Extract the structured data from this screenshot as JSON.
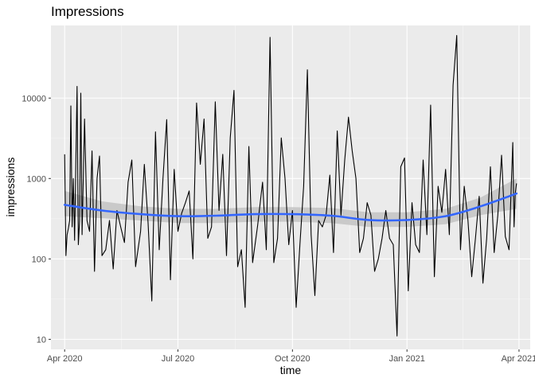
{
  "chart_data": {
    "type": "line",
    "title": "Impressions",
    "xlabel": "time",
    "ylabel": "impressions",
    "y_scale": "log10",
    "ylim": [
      7.5,
      80000
    ],
    "xlim": [
      "2020-03-21",
      "2021-04-10"
    ],
    "x_ticks": [
      {
        "date": "2020-04-01",
        "label": "Apr 2020"
      },
      {
        "date": "2020-07-01",
        "label": "Jul 2020"
      },
      {
        "date": "2020-10-01",
        "label": "Oct 2020"
      },
      {
        "date": "2021-01-01",
        "label": "Jan 2021"
      },
      {
        "date": "2021-04-01",
        "label": "Apr 2021"
      }
    ],
    "y_ticks": [
      {
        "value": 10,
        "label": "10"
      },
      {
        "value": 100,
        "label": "100"
      },
      {
        "value": 1000,
        "label": "1000"
      },
      {
        "value": 10000,
        "label": "10000"
      }
    ],
    "grid": true,
    "panel_background": "#ebebeb",
    "colors": {
      "raw_series": "#000000",
      "smooth": "#3366ff",
      "confidence_band": "#bdbdbd"
    },
    "series": [
      {
        "style": "line",
        "x": [
          "2020-04-01",
          "2020-04-02",
          "2020-04-03",
          "2020-04-04",
          "2020-04-05",
          "2020-04-06",
          "2020-04-07",
          "2020-04-08",
          "2020-04-09",
          "2020-04-10",
          "2020-04-11",
          "2020-04-12",
          "2020-04-13",
          "2020-04-14",
          "2020-04-15",
          "2020-04-17",
          "2020-04-19",
          "2020-04-21",
          "2020-04-23",
          "2020-04-25",
          "2020-04-27",
          "2020-04-29",
          "2020-05-01",
          "2020-05-04",
          "2020-05-07",
          "2020-05-10",
          "2020-05-13",
          "2020-05-16",
          "2020-05-19",
          "2020-05-22",
          "2020-05-25",
          "2020-05-28",
          "2020-06-01",
          "2020-06-04",
          "2020-06-07",
          "2020-06-10",
          "2020-06-13",
          "2020-06-16",
          "2020-06-19",
          "2020-06-22",
          "2020-06-25",
          "2020-06-28",
          "2020-07-01",
          "2020-07-04",
          "2020-07-07",
          "2020-07-10",
          "2020-07-13",
          "2020-07-16",
          "2020-07-19",
          "2020-07-22",
          "2020-07-25",
          "2020-07-28",
          "2020-07-31",
          "2020-08-03",
          "2020-08-06",
          "2020-08-09",
          "2020-08-12",
          "2020-08-15",
          "2020-08-18",
          "2020-08-21",
          "2020-08-24",
          "2020-08-27",
          "2020-08-30",
          "2020-09-03",
          "2020-09-07",
          "2020-09-10",
          "2020-09-13",
          "2020-09-16",
          "2020-09-19",
          "2020-09-22",
          "2020-09-25",
          "2020-09-28",
          "2020-10-01",
          "2020-10-04",
          "2020-10-07",
          "2020-10-10",
          "2020-10-13",
          "2020-10-16",
          "2020-10-19",
          "2020-10-22",
          "2020-10-25",
          "2020-10-28",
          "2020-10-31",
          "2020-11-03",
          "2020-11-06",
          "2020-11-09",
          "2020-11-12",
          "2020-11-15",
          "2020-11-18",
          "2020-11-21",
          "2020-11-24",
          "2020-11-27",
          "2020-11-30",
          "2020-12-03",
          "2020-12-06",
          "2020-12-09",
          "2020-12-12",
          "2020-12-15",
          "2020-12-18",
          "2020-12-21",
          "2020-12-24",
          "2020-12-27",
          "2020-12-30",
          "2021-01-02",
          "2021-01-05",
          "2021-01-08",
          "2021-01-11",
          "2021-01-14",
          "2021-01-17",
          "2021-01-20",
          "2021-01-23",
          "2021-01-26",
          "2021-01-29",
          "2021-02-01",
          "2021-02-04",
          "2021-02-07",
          "2021-02-10",
          "2021-02-13",
          "2021-02-16",
          "2021-02-19",
          "2021-02-22",
          "2021-02-25",
          "2021-02-28",
          "2021-03-03",
          "2021-03-06",
          "2021-03-09",
          "2021-03-12",
          "2021-03-15",
          "2021-03-18",
          "2021-03-21",
          "2021-03-24",
          "2021-03-27",
          "2021-03-28",
          "2021-03-29",
          "2021-03-30"
        ],
        "y": [
          2000,
          110,
          200,
          240,
          300,
          8000,
          250,
          1000,
          170,
          1600,
          14000,
          150,
          300,
          11500,
          200,
          5500,
          300,
          220,
          2200,
          70,
          1000,
          1900,
          110,
          130,
          300,
          75,
          400,
          250,
          160,
          900,
          1700,
          80,
          220,
          1500,
          280,
          30,
          3800,
          130,
          1000,
          5400,
          55,
          1300,
          220,
          370,
          500,
          700,
          100,
          8700,
          1500,
          5500,
          180,
          250,
          9000,
          400,
          2000,
          110,
          3200,
          12500,
          80,
          130,
          25,
          2500,
          90,
          260,
          900,
          130,
          57000,
          90,
          180,
          3200,
          1000,
          150,
          400,
          25,
          150,
          800,
          22500,
          200,
          35,
          300,
          250,
          350,
          1100,
          120,
          3900,
          350,
          1700,
          5800,
          2200,
          1000,
          120,
          180,
          500,
          350,
          70,
          100,
          180,
          400,
          180,
          150,
          11,
          1400,
          1800,
          40,
          500,
          150,
          120,
          1700,
          200,
          8200,
          60,
          800,
          380,
          1300,
          200,
          14500,
          60000,
          130,
          800,
          300,
          60,
          180,
          600,
          50,
          180,
          1400,
          120,
          350,
          1950,
          190,
          130,
          2800,
          250,
          650,
          870
        ],
        "values_approximate": true
      },
      {
        "style": "smooth",
        "x": [
          "2020-04-01",
          "2020-05-01",
          "2020-06-01",
          "2020-07-01",
          "2020-08-01",
          "2020-09-01",
          "2020-10-01",
          "2020-11-01",
          "2020-12-01",
          "2021-01-01",
          "2021-02-01",
          "2021-03-01",
          "2021-03-30"
        ],
        "y": [
          470,
          400,
          360,
          340,
          345,
          360,
          360,
          345,
          305,
          305,
          340,
          450,
          650
        ],
        "band_lower": [
          340,
          320,
          300,
          280,
          280,
          290,
          290,
          280,
          250,
          250,
          270,
          350,
          420
        ],
        "band_upper": [
          700,
          520,
          450,
          420,
          420,
          440,
          440,
          430,
          380,
          380,
          420,
          580,
          1000
        ]
      }
    ]
  }
}
